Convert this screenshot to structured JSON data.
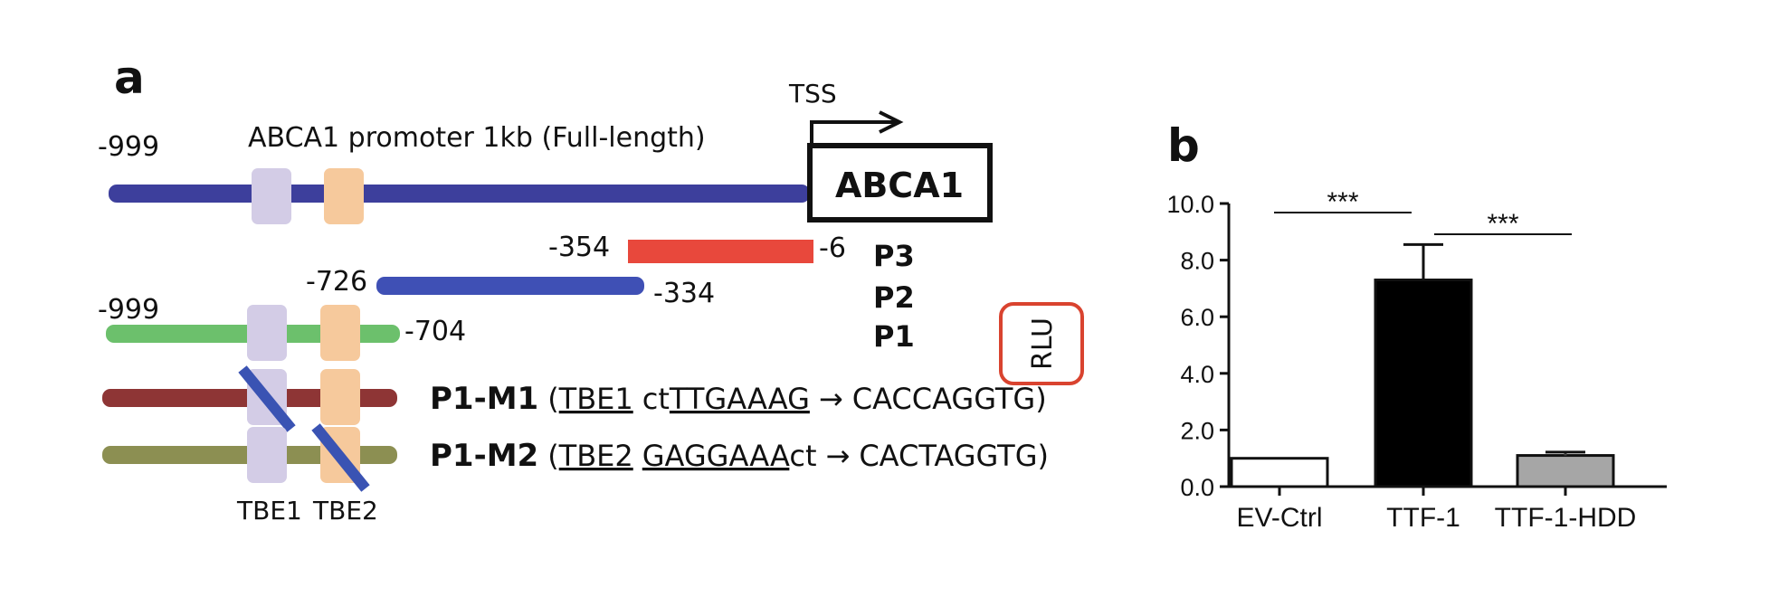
{
  "panel_a": {
    "label": "a",
    "tss_label": "TSS",
    "full_length_caption": "ABCA1 promoter 1kb (Full-length)",
    "full_start": "-999",
    "gene_label": "ABCA1",
    "p3": {
      "start": "-354",
      "end": "-6",
      "name": "P3",
      "color": "#e8483c"
    },
    "p2": {
      "start": "-726",
      "end": "-334",
      "name": "P2",
      "color": "#3f50b5"
    },
    "p1": {
      "start": "-999",
      "end": "-704",
      "name": "P1",
      "color": "#6cc06c"
    },
    "rlu_label": "RLU",
    "rlu_box_color": "#d9432f",
    "m1": {
      "name": "P1-M1",
      "open": "(",
      "site": "TBE1",
      "pre": "ct",
      "seq": "TTGAAAG",
      "arrow": "→",
      "post": "CACCAGGTG)",
      "color": "#8e3535"
    },
    "m2": {
      "name": "P1-M2",
      "open": "(",
      "site": "TBE2",
      "seq": "GAGGAAA",
      "post_lower": "ct",
      "arrow": "→",
      "post": "CACTAGGTG)",
      "color": "#8c8f52"
    },
    "tbe1_label": "TBE1",
    "tbe2_label": "TBE2",
    "colors": {
      "full_bar": "#3d3f9c",
      "tbe1": "#d3cce6",
      "tbe2": "#f6c99c",
      "mutation_slash": "#3a53b3"
    }
  },
  "panel_b": {
    "label": "b",
    "sig_left": "***",
    "sig_right": "***"
  },
  "chart_data": {
    "type": "bar",
    "categories": [
      "EV-Ctrl",
      "TTF-1",
      "TTF-1-HDD"
    ],
    "values": [
      1.0,
      7.3,
      1.1
    ],
    "errors": [
      0,
      1.25,
      0.12
    ],
    "bar_colors": [
      "#ffffff",
      "#000000",
      "#a6a6a6"
    ],
    "ylim": [
      0,
      10
    ],
    "yticks": [
      "0.0",
      "2.0",
      "4.0",
      "6.0",
      "8.0",
      "10.0"
    ],
    "ytick_values": [
      0,
      2,
      4,
      6,
      8,
      10
    ],
    "title": "",
    "xlabel": "",
    "ylabel": ""
  }
}
